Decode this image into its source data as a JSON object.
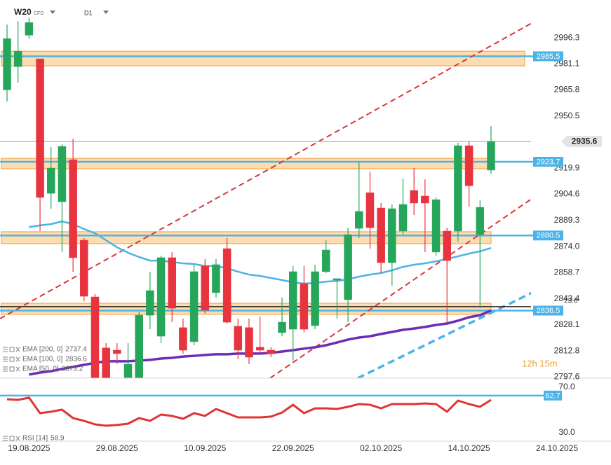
{
  "header": {
    "symbol": "W20",
    "instrument_type": "CFD",
    "timeframe": "D1",
    "timer": "12h 15m"
  },
  "chart_data": [
    {
      "type": "candlestick",
      "open": [
        2965.9,
        2979.5,
        2997.9,
        2984.0,
        2905.2,
        2900.3,
        2924.9,
        2877.7,
        2844.5,
        2814.6,
        2813.3,
        2794.9,
        2796.9,
        2833.8,
        2821.5,
        2867.5,
        2826.5,
        2818.3,
        2862.6,
        2847.0,
        2872.8,
        2827.3,
        2826.5,
        2815.0,
        2813.3,
        2823.6,
        2825.6,
        2852.3,
        2827.7,
        2859.3,
        2854.4,
        2842.9,
        2884.7,
        2905.6,
        2896.6,
        2864.6,
        2883.1,
        2906.9,
        2903.6,
        2870.8,
        2883.1,
        2883.1,
        2933.1,
        2881.0,
        2918.8
      ],
      "high": [
        3004.1,
        3006.1,
        3008.2,
        2984.0,
        2932.3,
        2933.9,
        2937.2,
        2879.0,
        2846.2,
        2817.4,
        2817.4,
        2817.4,
        2835.9,
        2859.3,
        2868.7,
        2870.8,
        2831.8,
        2863.4,
        2866.7,
        2866.7,
        2879.0,
        2831.8,
        2831.8,
        2833.0,
        2815.0,
        2844.1,
        2862.6,
        2862.6,
        2863.4,
        2877.7,
        2855.2,
        2885.1,
        2923.3,
        2917.9,
        2899.5,
        2898.7,
        2913.8,
        2920.0,
        2913.4,
        2902.8,
        2885.1,
        2934.8,
        2935.6,
        2901.1,
        2944.6
      ],
      "low": [
        2959.0,
        2970.0,
        2995.9,
        2883.1,
        2896.2,
        2870.8,
        2859.3,
        2842.0,
        2788.7,
        2788.7,
        2805.1,
        2788.7,
        2788.7,
        2825.6,
        2817.4,
        2829.7,
        2811.3,
        2816.2,
        2834.7,
        2844.1,
        2828.9,
        2808.0,
        2805.1,
        2811.3,
        2809.2,
        2821.5,
        2807.2,
        2823.6,
        2825.6,
        2858.5,
        2831.8,
        2829.7,
        2879.0,
        2872.8,
        2858.5,
        2851.1,
        2881.0,
        2892.5,
        2870.8,
        2868.7,
        2829.7,
        2876.9,
        2897.4,
        2837.9,
        2916.7
      ],
      "close": [
        2995.9,
        2988.5,
        3005.3,
        2902.8,
        2920.0,
        2932.7,
        2867.5,
        2844.9,
        2794.9,
        2794.9,
        2811.3,
        2805.1,
        2833.8,
        2848.2,
        2867.5,
        2837.9,
        2813.3,
        2859.3,
        2836.7,
        2863.4,
        2829.7,
        2813.3,
        2809.2,
        2813.3,
        2811.3,
        2829.7,
        2859.3,
        2825.6,
        2859.3,
        2872.0,
        2855.2,
        2881.0,
        2894.6,
        2885.1,
        2864.6,
        2896.2,
        2898.7,
        2899.5,
        2899.5,
        2901.5,
        2865.8,
        2933.1,
        2909.7,
        2897.0,
        2935.6
      ],
      "up_color": "#26a65b",
      "down_color": "#e8343f",
      "ylim": [
        2796.9,
        3018.5
      ],
      "yticks": [
        2996.3,
        2981.1,
        2965.8,
        2950.5,
        2919.9,
        2904.6,
        2889.3,
        {
          "value": 2874,
          "label": "2874.0"
        },
        2858.7,
        2843.4,
        2828.1,
        2812.8,
        2797.6
      ],
      "xlim": [
        -0.64,
        47.51
      ],
      "xticks": [
        {
          "value": 2,
          "label": "19.08.2025"
        },
        {
          "value": 10,
          "label": "29.08.2025"
        },
        {
          "value": 18,
          "label": "10.09.2025"
        },
        {
          "value": 26,
          "label": "22.09.2025"
        },
        {
          "value": 34,
          "label": "02.10.2025"
        },
        {
          "value": 42,
          "label": "14.10.2025"
        },
        {
          "value": 50,
          "label": "24.10.2025"
        }
      ],
      "last_price": 2935.6,
      "levels": [
        {
          "value": 2985.5,
          "zone": [
            2979.9,
            2988.5
          ]
        },
        {
          "value": 2923.7,
          "zone": [
            2919.6,
            2925.7
          ]
        },
        {
          "value": 2880.5,
          "zone": [
            2875.7,
            2882.7
          ]
        },
        {
          "value": 2836.5,
          "zone": [
            2834.3,
            2840.8
          ]
        }
      ],
      "level_color": "#4db3e6",
      "zone_color": "#fcd7a4",
      "fib_level": {
        "ratio": 23.6,
        "price": 2838.8
      },
      "indicators": [
        {
          "name": "EMA [200, 0]",
          "last": 2737.4
        },
        {
          "name": "EMA [100, 0]",
          "last": 2836.6,
          "color": "#6a2fb5",
          "values": [
            null,
            null,
            2799.0,
            2800.2,
            2801.0,
            2802.3,
            2803.5,
            2804.7,
            2805.9,
            2806.8,
            2806.8,
            2806.8,
            2807.2,
            2807.6,
            2808.4,
            2808.8,
            2809.6,
            2810.0,
            2810.5,
            2810.9,
            2810.9,
            2811.3,
            2811.3,
            2811.3,
            2811.7,
            2812.5,
            2813.3,
            2814.2,
            2815.0,
            2816.2,
            2817.8,
            2819.5,
            2820.7,
            2821.5,
            2822.8,
            2824.0,
            2825.2,
            2826.0,
            2826.9,
            2828.1,
            2828.9,
            2830.6,
            2832.6,
            2833.8,
            2836.6
          ]
        },
        {
          "name": "EMA [50, 0]",
          "last": 2873.2,
          "color": "#4db3e6",
          "values": [
            null,
            null,
            2885.5,
            2886.4,
            2887.2,
            2888.8,
            2887.2,
            2884.3,
            2881.8,
            2877.7,
            2873.6,
            2870.4,
            2867.9,
            2865.8,
            2865.8,
            2865.0,
            2864.2,
            2863.8,
            2862.6,
            2862.6,
            2861.3,
            2859.3,
            2857.6,
            2856.8,
            2855.6,
            2854.4,
            2853.1,
            2852.3,
            2852.7,
            2853.5,
            2853.9,
            2854.8,
            2856.4,
            2857.6,
            2858.5,
            2860.1,
            2862.1,
            2863.4,
            2864.2,
            2865.4,
            2866.7,
            2868.3,
            2869.9,
            2871.2,
            2873.2
          ]
        }
      ]
    },
    {
      "type": "line",
      "name": "RSI [14]",
      "last": 58.9,
      "color": "#e03535",
      "values": [
        59.5,
        58.9,
        60.8,
        47.2,
        48.5,
        50.3,
        42.9,
        40.5,
        37.4,
        36.2,
        36.8,
        38.0,
        42.9,
        40.5,
        46.0,
        44.8,
        42.3,
        47.2,
        44.8,
        50.9,
        47.2,
        43.5,
        43.5,
        43.5,
        44.2,
        47.8,
        54.6,
        47.2,
        51.5,
        51.5,
        50.9,
        52.8,
        55.2,
        54.6,
        51.5,
        55.2,
        55.2,
        55.2,
        55.8,
        55.2,
        48.5,
        58.3,
        55.2,
        52.8,
        58.9
      ],
      "ylim": [
        22.6,
        78.0
      ],
      "yticks": [
        {
          "value": 70,
          "label": "70.0"
        },
        {
          "value": 30,
          "label": "30.0"
        }
      ],
      "level": 62.7,
      "level_color": "#4db3e6"
    }
  ]
}
